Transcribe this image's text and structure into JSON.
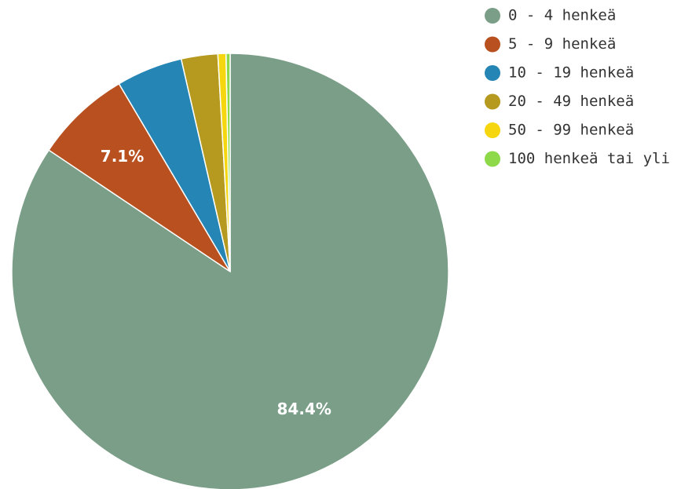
{
  "chart_data": {
    "type": "pie",
    "title": "",
    "legend_position": "right",
    "start": "12 o'clock, clockwise",
    "slices": [
      {
        "label": "0 - 4 henkeä",
        "value": 84.4,
        "color": "#7a9e87",
        "display": "84.4%"
      },
      {
        "label": "5 - 9 henkeä",
        "value": 7.1,
        "color": "#b8501f",
        "display": "7.1%"
      },
      {
        "label": "10 - 19 henkeä",
        "value": 4.9,
        "color": "#2585b5",
        "display": ""
      },
      {
        "label": "20 - 49 henkeä",
        "value": 2.7,
        "color": "#b59a1f",
        "display": ""
      },
      {
        "label": "50 - 99 henkeä",
        "value": 0.6,
        "color": "#f5d60f",
        "display": ""
      },
      {
        "label": "100 henkeä tai yli",
        "value": 0.3,
        "color": "#8dd94a",
        "display": ""
      }
    ]
  }
}
